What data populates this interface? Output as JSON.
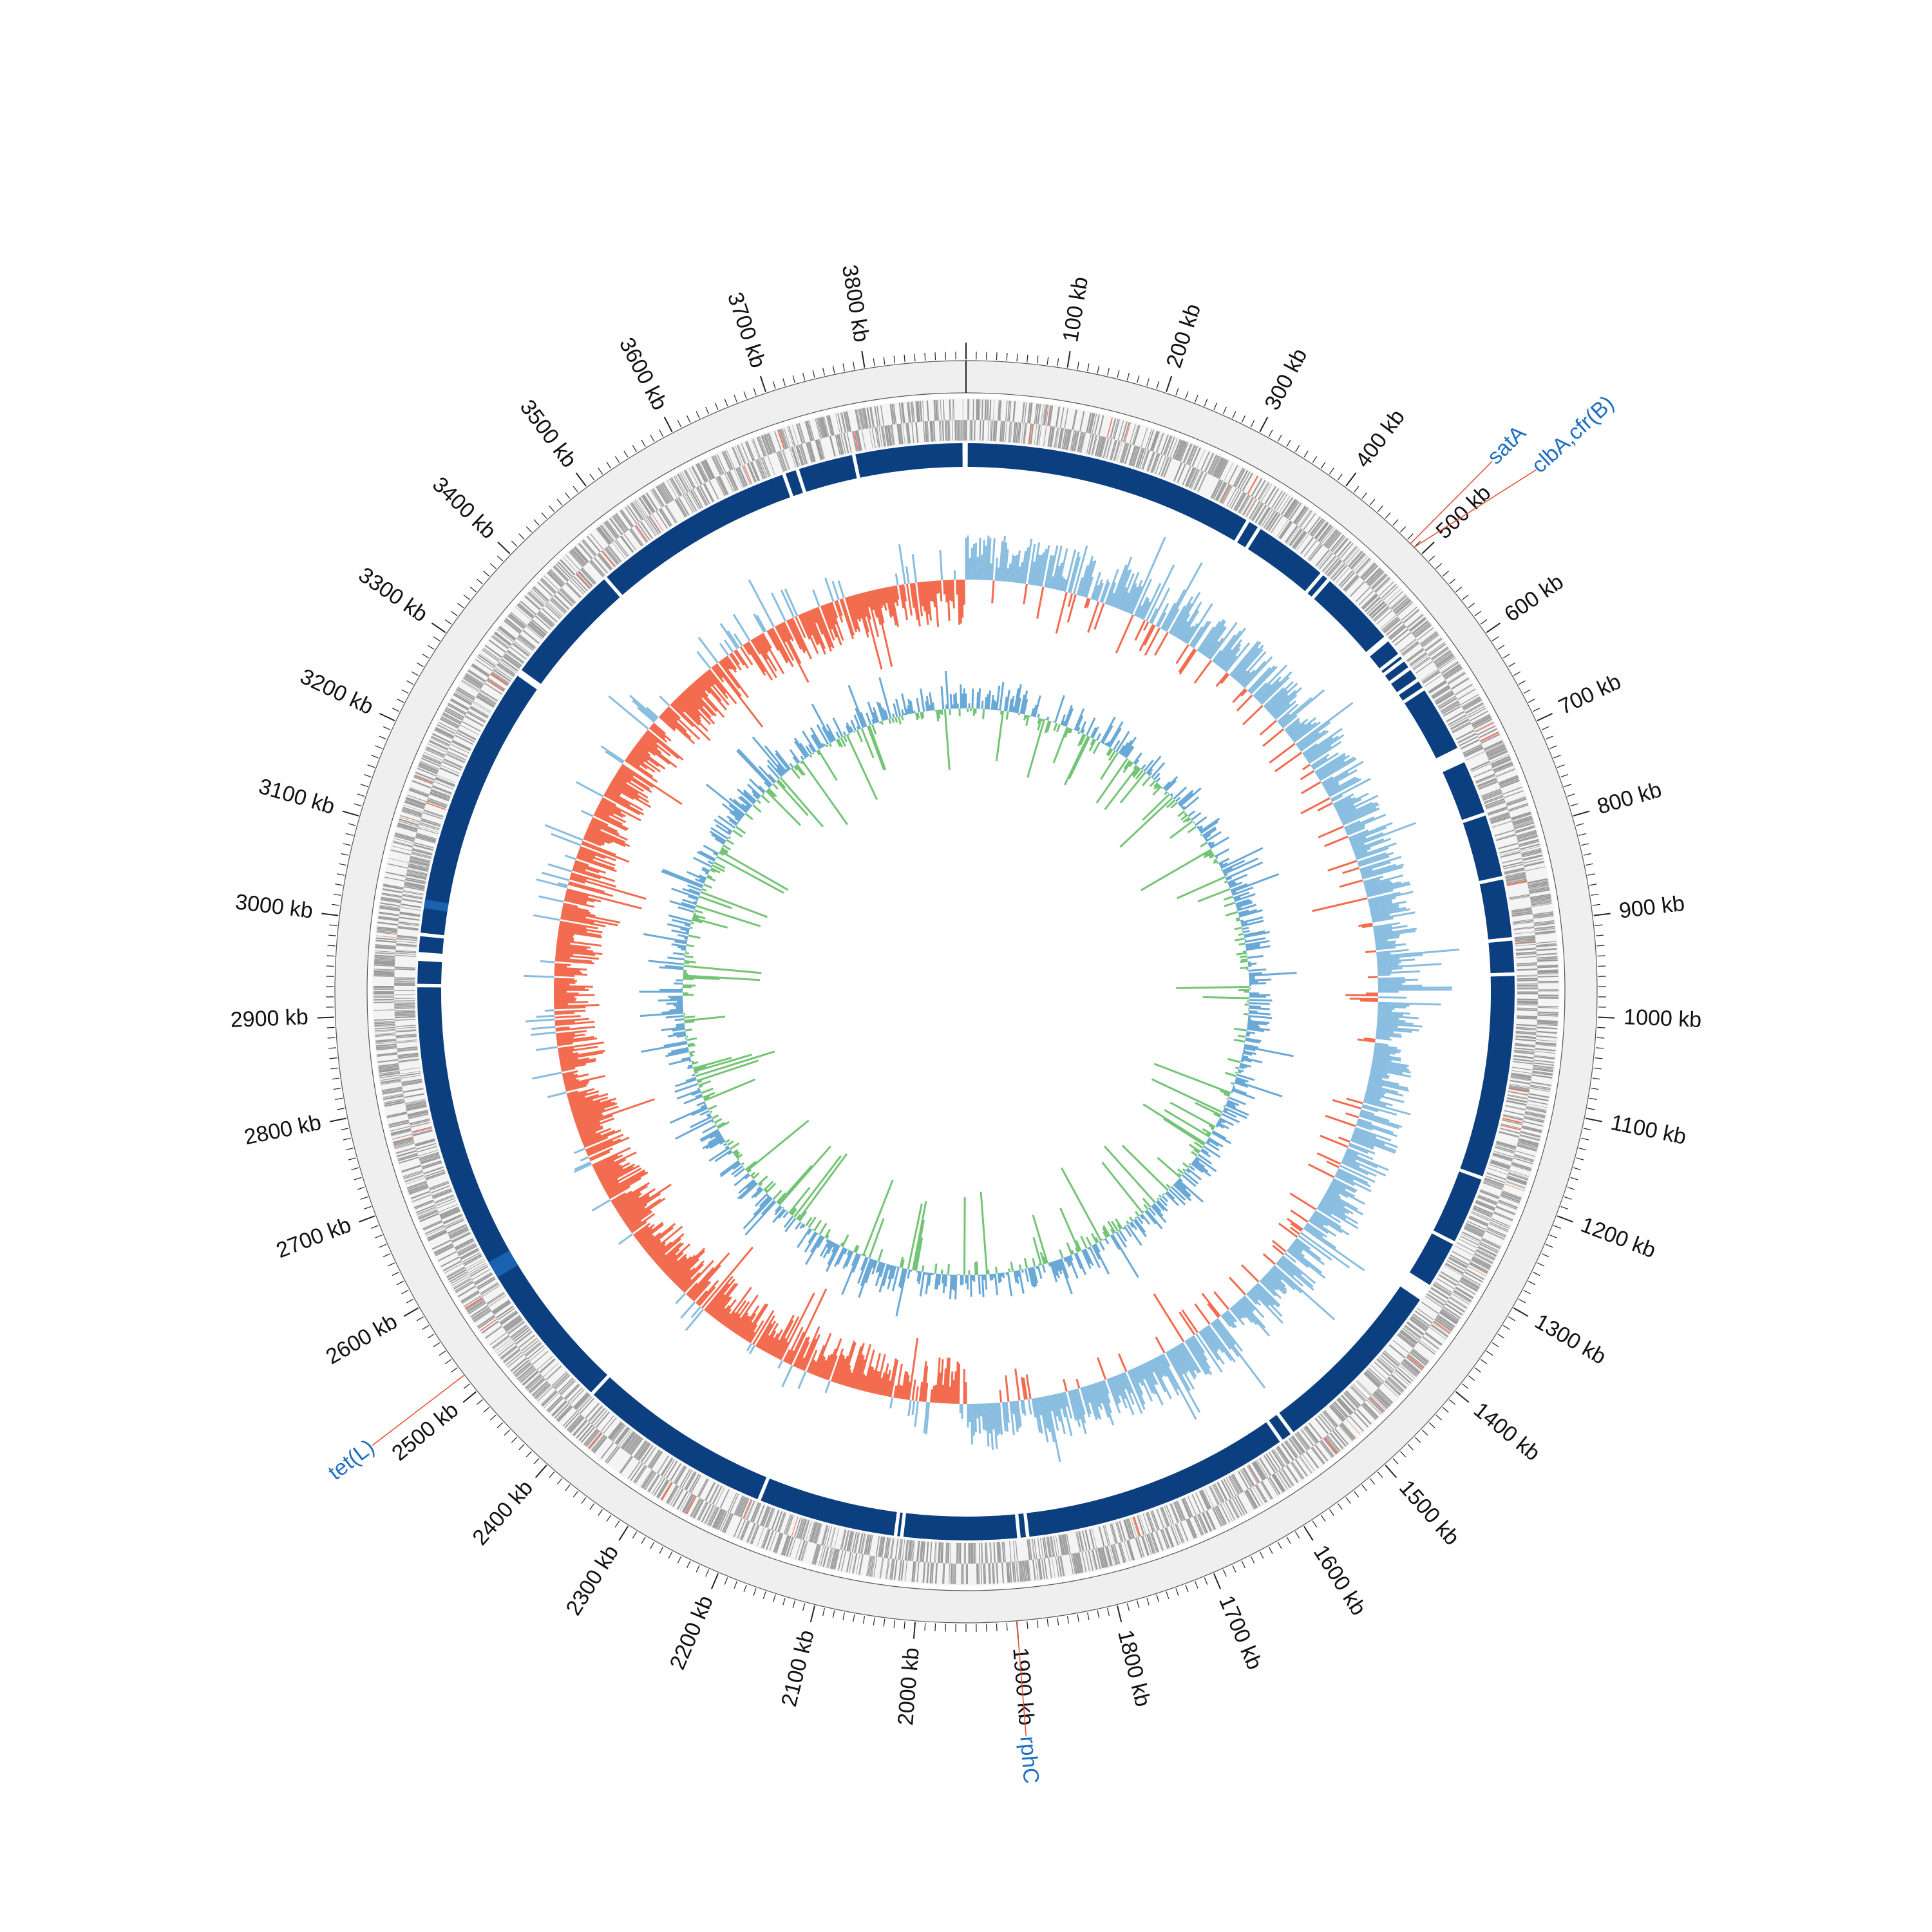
{
  "genome": {
    "length_kb": 3900,
    "tick_unit": "kb",
    "tick_labels": [
      "100 kb",
      "200 kb",
      "300 kb",
      "400 kb",
      "500 kb",
      "600 kb",
      "700 kb",
      "800 kb",
      "900 kb",
      "1000 kb",
      "1100 kb",
      "1200 kb",
      "1300 kb",
      "1400 kb",
      "1500 kb",
      "1600 kb",
      "1700 kb",
      "1800 kb",
      "1900 kb",
      "2000 kb",
      "2100 kb",
      "2200 kb",
      "2300 kb",
      "2400 kb",
      "2500 kb",
      "2600 kb",
      "2700 kb",
      "2800 kb",
      "2900 kb",
      "3000 kb",
      "3100 kb",
      "3200 kb",
      "3300 kb",
      "3400 kb",
      "3500 kb",
      "3600 kb",
      "3700 kb",
      "3800 kb"
    ]
  },
  "annotations": [
    {
      "label": "satA",
      "position_kb": 485
    },
    {
      "label": "clbA,cfr(B)",
      "position_kb": 490
    },
    {
      "label": "tet(L)",
      "position_kb": 2520
    },
    {
      "label": "rphC",
      "position_kb": 1900
    }
  ],
  "contig_gaps_kb": [
    335,
    350,
    438,
    448,
    540,
    543,
    565,
    572,
    584,
    600,
    612,
    698,
    770,
    845,
    915,
    955,
    1190,
    1270,
    1335,
    1555,
    1570,
    1880,
    1890,
    2023,
    2030,
    2190,
    2415,
    2932,
    2965,
    2990,
    3310,
    3455,
    3690,
    3706,
    3772
  ],
  "gc_skew_switch_kb": [
    0,
    1950
  ],
  "colors": {
    "ring_bg": "#efefef",
    "cds": "#999999",
    "contig": "#0b3f80",
    "contig_highlight": "#1a62b0",
    "skew_positive": "#88bde0",
    "skew_negative": "#f26b4f",
    "gc_outer": "#6aa9d6",
    "gc_inner": "#74c476",
    "label_blue": "#1f6fbf",
    "label_line": "#e8553a"
  }
}
